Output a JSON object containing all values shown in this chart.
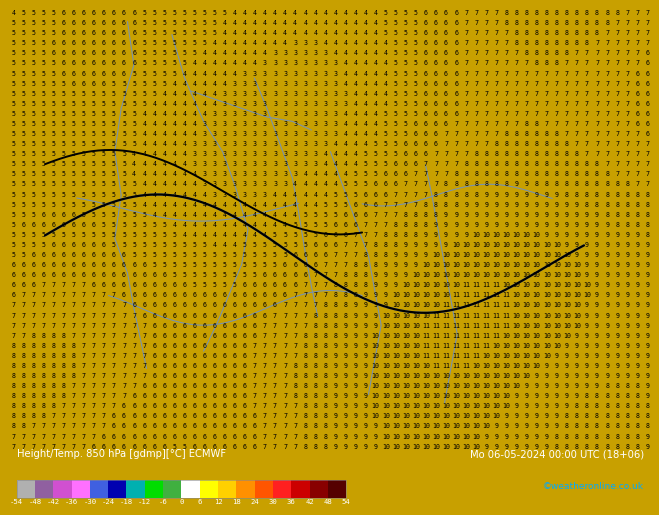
{
  "title_left": "Height/Temp. 850 hPa [gdmp][°C] ECMWF",
  "title_right": "Mo 06-05-2024 00:00 UTC (18+06)",
  "credit": "©weatheronline.co.uk",
  "colorbar_ticks": [
    -54,
    -48,
    -42,
    -36,
    -30,
    -24,
    -18,
    -12,
    -6,
    0,
    6,
    12,
    18,
    24,
    30,
    36,
    42,
    48,
    54
  ],
  "colorbar_colors": [
    "#b0b0b0",
    "#9060a0",
    "#d050d0",
    "#ff70ff",
    "#4060e0",
    "#0000b0",
    "#00b0b0",
    "#00dd00",
    "#40b040",
    "#ffffff",
    "#ffff00",
    "#ffd000",
    "#ff9000",
    "#ff5500",
    "#ff2020",
    "#cc0000",
    "#880000",
    "#550000"
  ],
  "map_bg_color": "#f5c800",
  "bottom_bar_color": "#1a1a1a",
  "number_color": "#000000",
  "geo_line_color": "#7090c0",
  "bold_line_color": "#000000",
  "text_white": "#ffffff",
  "credit_color": "#00aaff",
  "fig_bg": "#c8a000"
}
